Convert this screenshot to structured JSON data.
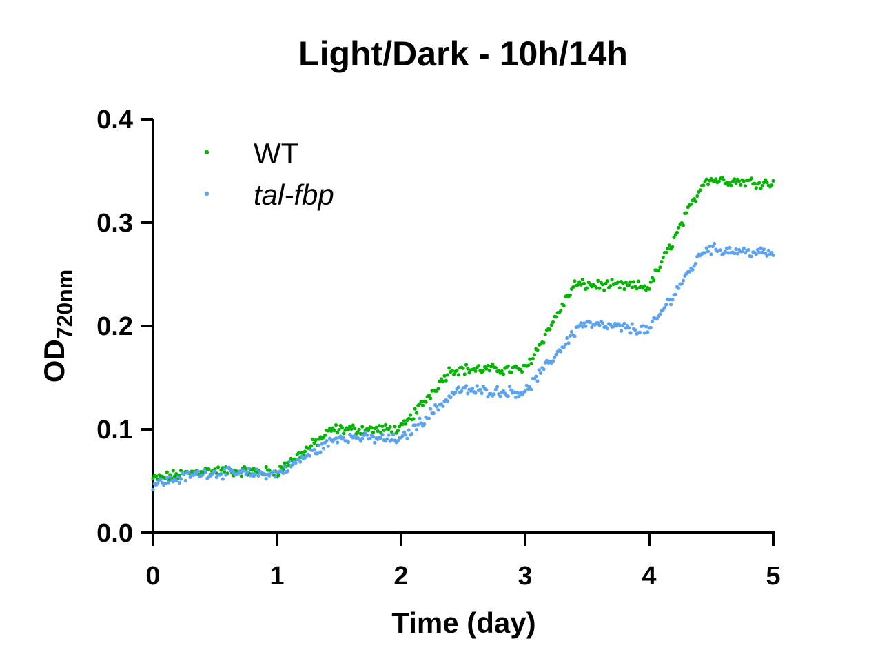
{
  "chart_data": {
    "type": "scatter",
    "title": "Light/Dark - 10h/14h",
    "xlabel": "Time (day)",
    "ylabel": {
      "main": "OD",
      "subscript": "720nm"
    },
    "xlim": [
      0,
      5
    ],
    "ylim": [
      0,
      0.4
    ],
    "x_ticks": [
      "0",
      "1",
      "2",
      "3",
      "4",
      "5"
    ],
    "y_ticks": [
      "0.0",
      "0.1",
      "0.2",
      "0.3",
      "0.4"
    ],
    "legend_position": "top-left",
    "grid": false,
    "sampling_interval_day": 0.0125,
    "series": [
      {
        "name": "WT",
        "italic": false,
        "color": "#00B400",
        "keypoints": [
          [
            0,
            0.052
          ],
          [
            0.4,
            0.06
          ],
          [
            1.0,
            0.059
          ],
          [
            1.45,
            0.1
          ],
          [
            2.0,
            0.1
          ],
          [
            2.4,
            0.158
          ],
          [
            3.0,
            0.158
          ],
          [
            3.4,
            0.24
          ],
          [
            4.0,
            0.238
          ],
          [
            4.45,
            0.342
          ],
          [
            5.0,
            0.338
          ]
        ]
      },
      {
        "name": "tal-fbp",
        "italic": true,
        "color": "#5BA3F0",
        "keypoints": [
          [
            0,
            0.047
          ],
          [
            0.4,
            0.058
          ],
          [
            1.0,
            0.057
          ],
          [
            1.5,
            0.093
          ],
          [
            2.0,
            0.09
          ],
          [
            2.45,
            0.138
          ],
          [
            3.0,
            0.136
          ],
          [
            3.45,
            0.202
          ],
          [
            4.0,
            0.196
          ],
          [
            4.45,
            0.275
          ],
          [
            5.0,
            0.27
          ]
        ]
      }
    ]
  }
}
